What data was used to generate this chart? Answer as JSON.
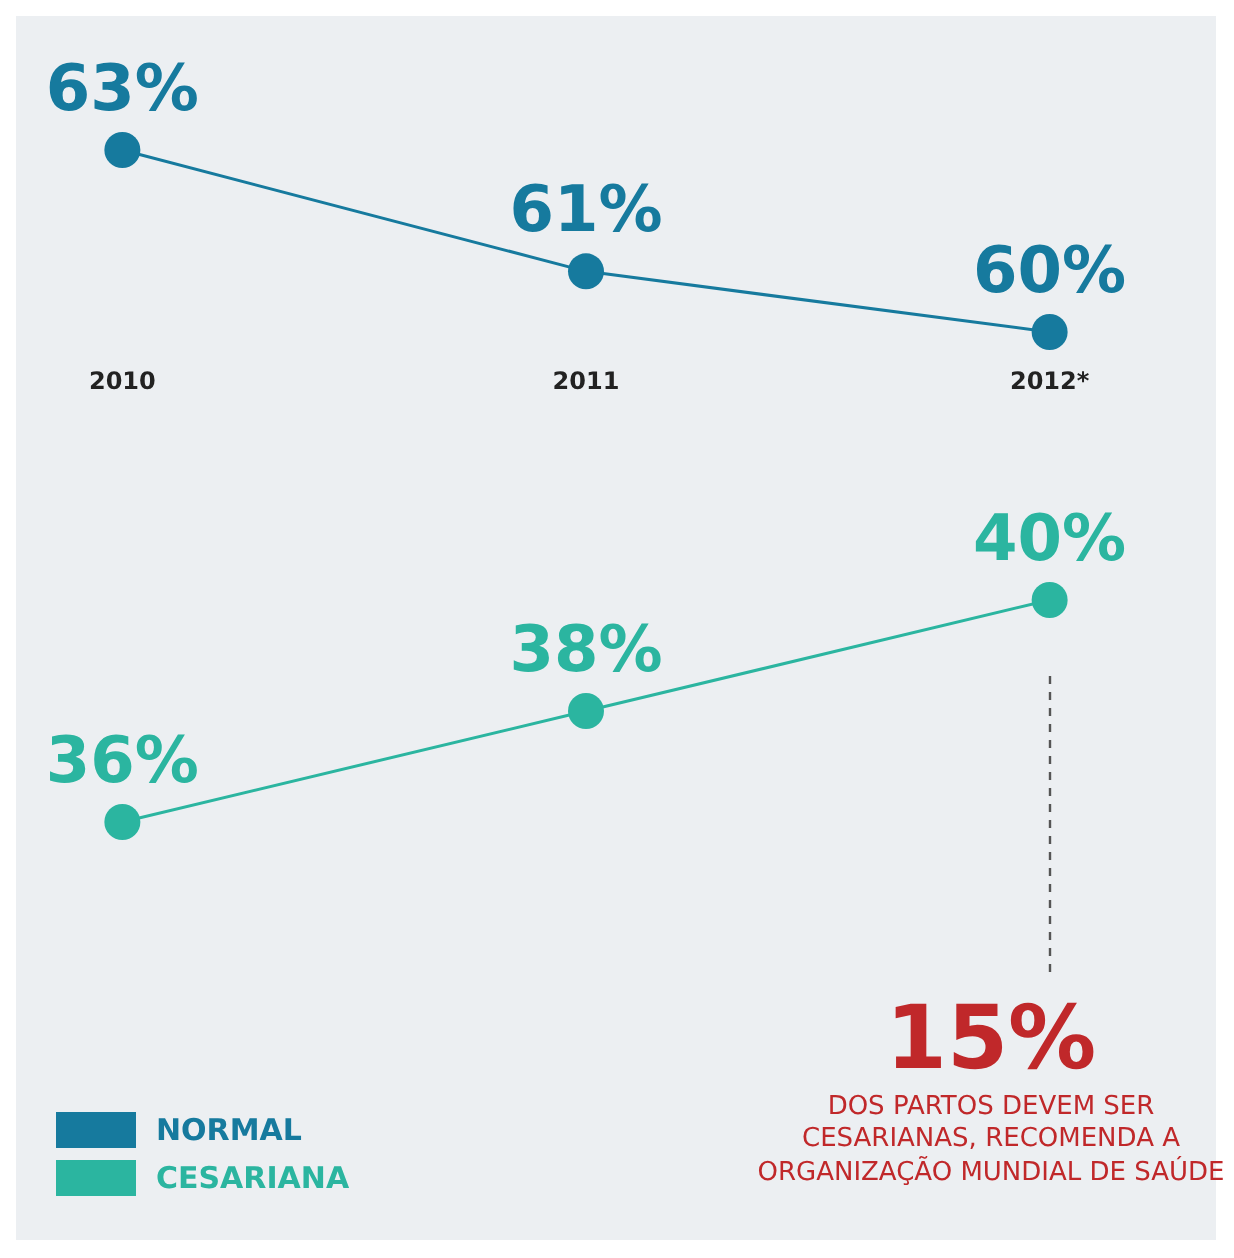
{
  "chart_data": [
    {
      "type": "line",
      "categories": [
        "2010",
        "2011",
        "2012*"
      ],
      "series": [
        {
          "name": "NORMAL",
          "color": "#167a9e",
          "values": [
            63,
            61,
            60
          ],
          "value_labels": [
            "63%",
            "61%",
            "60%"
          ]
        }
      ],
      "tick_labels": "x",
      "marker": "circle",
      "legend": "bottom left"
    },
    {
      "type": "line",
      "categories": [
        null,
        null,
        null
      ],
      "series": [
        {
          "name": "CESARIANA",
          "color": "#2bb5a0",
          "values": [
            36,
            38,
            40
          ],
          "value_labels": [
            "36%",
            "38%",
            "40%"
          ]
        }
      ],
      "tick_labels": false,
      "marker": "circle",
      "legend": "bottom left",
      "annotations": [
        "15%",
        "DOS PARTOS DEVEM SER CESARIANAS, RECOMENDA A ORGANIZAÇÃO MUNDIAL DE SAÚDE"
      ]
    }
  ]
}
